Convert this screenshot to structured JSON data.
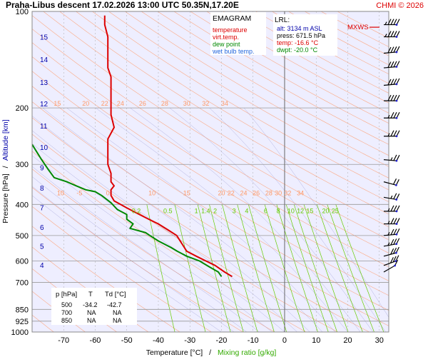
{
  "header": {
    "title": "Praha-Libus  descent  17.02.2026 13:00 UTC  50.35N,17.20E",
    "credit": "CHMI © 2026"
  },
  "colors": {
    "background": "#ffffff",
    "plot_area": "#eeeeff",
    "temperature": "#dd0000",
    "virtual_temperature": "#dd0000",
    "dew_point": "#008800",
    "wet_bulb": "#2266dd",
    "dry_adiabat": "#ff9966",
    "moist_adiabat": "#8888cc",
    "mixing_ratio": "#66cc00",
    "isobar": "#999999",
    "altitude": "#0000aa",
    "wind_barb": "#000000"
  },
  "legend": {
    "title": "EMAGRAM",
    "items": [
      {
        "label": "temperature",
        "color": "#dd0000"
      },
      {
        "label": "virt.temp.",
        "color": "#dd0000"
      },
      {
        "label": "dew point",
        "color": "#008800"
      },
      {
        "label": "wet bulb temp.",
        "color": "#2266dd"
      }
    ]
  },
  "lrl": {
    "title": "LRL:",
    "lines": [
      {
        "text": "alt: 3134 m ASL",
        "color": "#0000aa"
      },
      {
        "text": "press: 671.5 hPa",
        "color": "#000000"
      },
      {
        "text": "temp: -16.6 °C",
        "color": "#dd0000"
      },
      {
        "text": "dwpt: -20.0 °C",
        "color": "#008800"
      }
    ]
  },
  "mxws_label": "MXWS",
  "table": {
    "headers": [
      "p [hPa]",
      "T",
      "Td [°C]"
    ],
    "rows": [
      [
        "500",
        "-34.2",
        "-42.7"
      ],
      [
        "700",
        "NA",
        "NA"
      ],
      [
        "850",
        "NA",
        "NA"
      ]
    ]
  },
  "axis_labels": {
    "y": "Pressure [hPa]",
    "y_sep": "/",
    "y_alt": "Altitude [km]",
    "x": "Temperature [°C]",
    "x_sep": "/",
    "x_mix": "Mixing ratio [g/kg]"
  },
  "chart_data": {
    "type": "line",
    "x_range": [
      -80,
      33
    ],
    "y_range_hpa": [
      1000,
      100
    ],
    "log_pressure": true,
    "grid": true,
    "pressure_ticks": [
      100,
      200,
      300,
      400,
      500,
      600,
      700,
      850,
      925,
      1000
    ],
    "temp_ticks": [
      -70,
      -60,
      -50,
      -40,
      -30,
      -20,
      -10,
      0,
      10,
      20,
      30
    ],
    "altitude_ticks": [
      {
        "km": "4",
        "p": 617
      },
      {
        "km": "5",
        "p": 539
      },
      {
        "km": "6",
        "p": 470
      },
      {
        "km": "7",
        "p": 409
      },
      {
        "km": "8",
        "p": 355
      },
      {
        "km": "9",
        "p": 307
      },
      {
        "km": "10",
        "p": 265
      },
      {
        "km": "11",
        "p": 227
      },
      {
        "km": "12",
        "p": 194
      },
      {
        "km": "13",
        "p": 166
      },
      {
        "km": "14",
        "p": 141
      },
      {
        "km": "15",
        "p": 120
      }
    ],
    "dry_adiabat_labels": {
      "upper": {
        "p": 200,
        "labels": [
          {
            "t": -72,
            "text": "15"
          },
          {
            "t": -63,
            "text": "20"
          },
          {
            "t": -57,
            "text": "22"
          },
          {
            "t": -52,
            "text": "24"
          },
          {
            "t": -45,
            "text": "26"
          },
          {
            "t": -38,
            "text": "28"
          },
          {
            "t": -31,
            "text": "30"
          },
          {
            "t": -25,
            "text": "32"
          },
          {
            "t": -19,
            "text": "34"
          }
        ]
      },
      "lower": {
        "p": 380,
        "labels": [
          {
            "t": -71,
            "text": "10"
          },
          {
            "t": -65,
            "text": "-5"
          },
          {
            "t": -56,
            "text": "0"
          },
          {
            "t": -42,
            "text": "10"
          },
          {
            "t": -31,
            "text": "15"
          },
          {
            "t": -20,
            "text": "20"
          },
          {
            "t": -17,
            "text": "22"
          },
          {
            "t": -13,
            "text": "24"
          },
          {
            "t": -9,
            "text": "26"
          },
          {
            "t": -5,
            "text": "28"
          },
          {
            "t": -2,
            "text": "30"
          },
          {
            "t": 1,
            "text": "32"
          },
          {
            "t": 5,
            "text": "34"
          }
        ]
      }
    },
    "mixing_ratio_labels": [
      {
        "t": -47,
        "text": "0.2"
      },
      {
        "t": -37,
        "text": "0.5"
      },
      {
        "t": -28,
        "text": "1"
      },
      {
        "t": -25,
        "text": "1.4"
      },
      {
        "t": -22,
        "text": "2"
      },
      {
        "t": -16,
        "text": "3"
      },
      {
        "t": -12,
        "text": "4"
      },
      {
        "t": -6,
        "text": "6"
      },
      {
        "t": -2,
        "text": "8"
      },
      {
        "t": 2,
        "text": "10"
      },
      {
        "t": 5,
        "text": "12"
      },
      {
        "t": 8,
        "text": "15"
      },
      {
        "t": 13,
        "text": "20"
      },
      {
        "t": 16,
        "text": "25"
      }
    ],
    "series": [
      {
        "name": "temperature",
        "color": "#dd0000",
        "points": [
          [
            -16.6,
            671.5
          ],
          [
            -19,
            650
          ],
          [
            -22,
            620
          ],
          [
            -25,
            600
          ],
          [
            -28,
            580
          ],
          [
            -31,
            560
          ],
          [
            -34.2,
            500
          ],
          [
            -37,
            480
          ],
          [
            -40,
            460
          ],
          [
            -43,
            445
          ],
          [
            -47,
            425
          ],
          [
            -50,
            410
          ],
          [
            -52,
            400
          ],
          [
            -54,
            390
          ],
          [
            -55,
            375
          ],
          [
            -55,
            360
          ],
          [
            -54,
            350
          ],
          [
            -55,
            340
          ],
          [
            -55,
            320
          ],
          [
            -56,
            300
          ],
          [
            -56,
            270
          ],
          [
            -56,
            250
          ],
          [
            -54,
            230
          ],
          [
            -55,
            210
          ],
          [
            -55,
            190
          ],
          [
            -55,
            175
          ],
          [
            -55,
            160
          ],
          [
            -56,
            150
          ],
          [
            -56,
            140
          ],
          [
            -56,
            130
          ],
          [
            -56,
            120
          ],
          [
            -57,
            110
          ],
          [
            -57,
            103
          ]
        ]
      },
      {
        "name": "dew point",
        "color": "#008800",
        "points": [
          [
            -20.0,
            671.5
          ],
          [
            -21,
            650
          ],
          [
            -24,
            625
          ],
          [
            -27,
            600
          ],
          [
            -31,
            580
          ],
          [
            -34,
            560
          ],
          [
            -36,
            545
          ],
          [
            -40,
            520
          ],
          [
            -42.7,
            500
          ],
          [
            -44,
            490
          ],
          [
            -49,
            475
          ],
          [
            -48,
            460
          ],
          [
            -50,
            445
          ],
          [
            -50,
            430
          ],
          [
            -53,
            415
          ],
          [
            -55,
            395
          ],
          [
            -58,
            375
          ],
          [
            -60,
            365
          ],
          [
            -63,
            360
          ],
          [
            -66,
            350
          ],
          [
            -69,
            340
          ],
          [
            -73,
            330
          ],
          [
            -75,
            310
          ],
          [
            -77,
            290
          ],
          [
            -80,
            260
          ]
        ]
      }
    ],
    "wind_barbs": [
      {
        "p": 110,
        "dir": 270,
        "speed": 45
      },
      {
        "p": 120,
        "dir": 270,
        "speed": 45
      },
      {
        "p": 135,
        "dir": 265,
        "speed": 40
      },
      {
        "p": 150,
        "dir": 265,
        "speed": 40
      },
      {
        "p": 170,
        "dir": 265,
        "speed": 40
      },
      {
        "p": 190,
        "dir": 270,
        "speed": 40
      },
      {
        "p": 215,
        "dir": 270,
        "speed": 35
      },
      {
        "p": 245,
        "dir": 270,
        "speed": 35
      },
      {
        "p": 290,
        "dir": 275,
        "speed": 25
      },
      {
        "p": 340,
        "dir": 285,
        "speed": 20
      },
      {
        "p": 380,
        "dir": 280,
        "speed": 25
      },
      {
        "p": 420,
        "dir": 270,
        "speed": 35
      },
      {
        "p": 460,
        "dir": 270,
        "speed": 35
      },
      {
        "p": 500,
        "dir": 265,
        "speed": 35
      },
      {
        "p": 540,
        "dir": 260,
        "speed": 35
      },
      {
        "p": 580,
        "dir": 255,
        "speed": 30
      },
      {
        "p": 620,
        "dir": 250,
        "speed": 30
      },
      {
        "p": 650,
        "dir": 240,
        "speed": 10
      }
    ],
    "mxws_p": 112
  }
}
